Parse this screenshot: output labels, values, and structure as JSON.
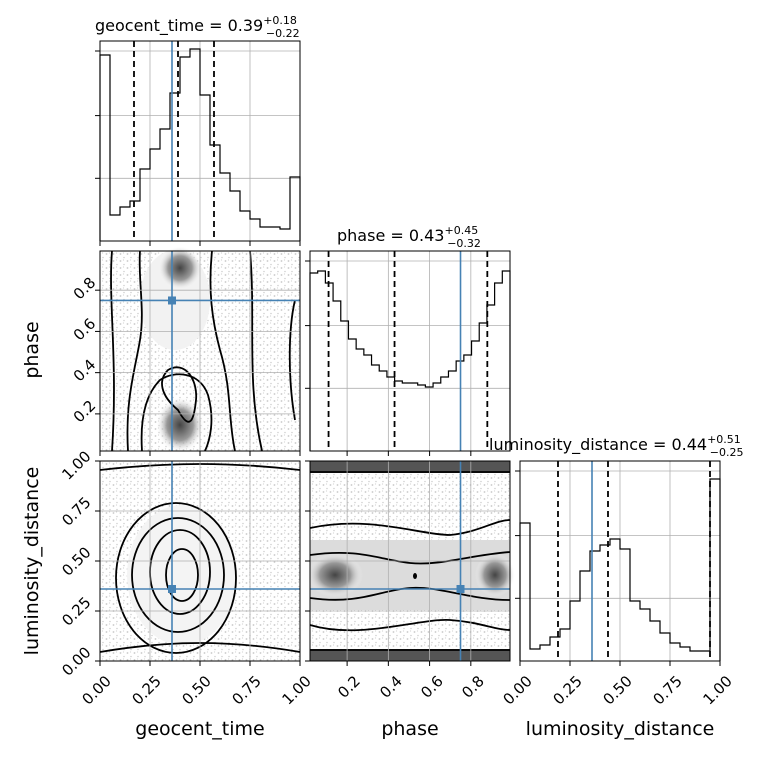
{
  "chart_data": {
    "type": "corner",
    "parameters": [
      "geocent_time",
      "phase",
      "luminosity_distance"
    ],
    "truths": {
      "geocent_time": 0.36,
      "phase": 0.75,
      "luminosity_distance": 0.36
    },
    "titles": [
      {
        "param": "geocent_time",
        "label": "geocent_time = 0.39",
        "plus": "+0.18",
        "minus": "−0.22",
        "median": 0.39,
        "q16": 0.17,
        "q84": 0.57
      },
      {
        "param": "phase",
        "label": "phase = 0.43",
        "plus": "+0.45",
        "minus": "−0.32",
        "median": 0.43,
        "q16": 0.11,
        "q84": 0.88
      },
      {
        "param": "luminosity_distance",
        "label": "luminosity_distance = 0.44",
        "plus": "+0.51",
        "minus": "−0.25",
        "median": 0.44,
        "q16": 0.19,
        "q84": 0.95
      }
    ],
    "ranges": {
      "geocent_time": [
        0,
        1
      ],
      "phase": [
        0.02,
        0.99
      ],
      "luminosity_distance": [
        0,
        1
      ]
    },
    "ticks": {
      "geocent_time": [
        "0.00",
        "0.25",
        "0.50",
        "0.75",
        "1.00"
      ],
      "phase": [
        "0.2",
        "0.4",
        "0.6",
        "0.8"
      ],
      "luminosity_distance": [
        "0.00",
        "0.25",
        "0.50",
        "0.75",
        "1.00"
      ]
    },
    "axis_labels": {
      "x": [
        "geocent_time",
        "phase",
        "luminosity_distance"
      ],
      "y": [
        "phase",
        "luminosity_distance"
      ]
    },
    "histograms": {
      "geocent_time": [
        0.93,
        0.13,
        0.17,
        0.2,
        0.36,
        0.46,
        0.56,
        0.74,
        0.92,
        0.96,
        0.73,
        0.48,
        0.34,
        0.25,
        0.15,
        0.11,
        0.07,
        0.07,
        0.06,
        0.32
      ],
      "phase": [
        0.89,
        0.9,
        0.84,
        0.75,
        0.65,
        0.56,
        0.51,
        0.48,
        0.43,
        0.4,
        0.37,
        0.35,
        0.34,
        0.34,
        0.33,
        0.32,
        0.34,
        0.37,
        0.4,
        0.45,
        0.48,
        0.55,
        0.64,
        0.73,
        0.84,
        0.9
      ],
      "luminosity_distance": [
        0.69,
        0.06,
        0.08,
        0.12,
        0.16,
        0.3,
        0.45,
        0.55,
        0.58,
        0.61,
        0.56,
        0.3,
        0.26,
        0.2,
        0.14,
        0.09,
        0.07,
        0.05,
        0.05,
        0.91
      ]
    },
    "grid": true
  }
}
